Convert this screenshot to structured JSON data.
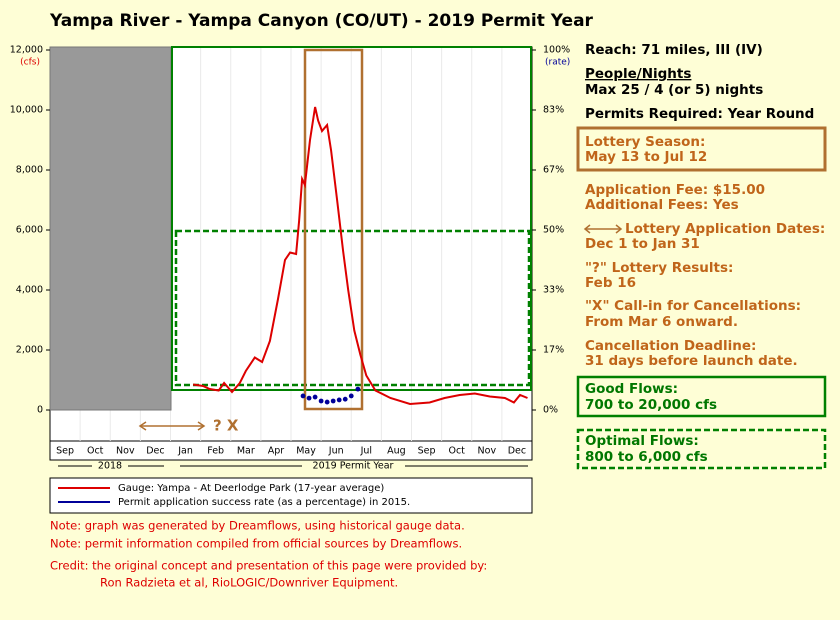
{
  "chart_data": {
    "type": "line",
    "title": "Yampa River - Yampa Canyon (CO/UT) - 2019 Permit Year",
    "y_unit": "(cfs)",
    "y2_unit": "(rate)",
    "categories": [
      "Sep",
      "Oct",
      "Nov",
      "Dec",
      "Jan",
      "Feb",
      "Mar",
      "Apr",
      "May",
      "Jun",
      "Jul",
      "Aug",
      "Sep",
      "Oct",
      "Nov",
      "Dec"
    ],
    "year_labels": [
      "2018",
      "2019 Permit Year"
    ],
    "annotations": [
      "? X"
    ],
    "xlim": [
      0,
      16
    ],
    "ylim": [
      0,
      12000
    ],
    "yticks": [
      0,
      {
        "value": 2000,
        "label": "2,000"
      },
      {
        "value": 4000,
        "label": "4,000"
      },
      {
        "value": 6000,
        "label": "6,000"
      },
      {
        "value": 8000,
        "label": "8,000"
      },
      {
        "value": 10000,
        "label": "10,000"
      },
      {
        "value": 12000,
        "label": "12,000"
      }
    ],
    "y2lim": [
      0,
      100
    ],
    "y2ticks": [
      {
        "value": 0,
        "label": "0%"
      },
      {
        "value": 16.67,
        "label": "17%"
      },
      {
        "value": 33.33,
        "label": "33%"
      },
      {
        "value": 50,
        "label": "50%"
      },
      {
        "value": 66.67,
        "label": "67%"
      },
      {
        "value": 83.33,
        "label": "83%"
      },
      {
        "value": 100,
        "label": "100%"
      }
    ],
    "grid": true,
    "series": [
      {
        "name": "Gauge: Yampa - At Deerlodge Park (17-year average)",
        "color": "#dd0000",
        "x": [
          4.75,
          5.08,
          5.3,
          5.6,
          5.78,
          6.04,
          6.3,
          6.5,
          6.8,
          7.04,
          7.3,
          7.57,
          7.8,
          7.97,
          8.17,
          8.27,
          8.37,
          8.46,
          8.63,
          8.8,
          8.9,
          9.03,
          9.2,
          9.33,
          9.53,
          9.73,
          9.9,
          10.1,
          10.3,
          10.5,
          10.8,
          11.3,
          11.95,
          12.6,
          13.1,
          13.6,
          14.1,
          14.6,
          15.1,
          15.4,
          15.6,
          15.85
        ],
        "values": [
          850,
          800,
          700,
          650,
          900,
          600,
          900,
          1300,
          1750,
          1600,
          2300,
          3700,
          5000,
          5250,
          5200,
          6300,
          7700,
          7500,
          9000,
          10100,
          9650,
          9300,
          9500,
          8650,
          7000,
          5300,
          4000,
          2650,
          1850,
          1150,
          650,
          400,
          200,
          250,
          400,
          500,
          550,
          450,
          400,
          250,
          500,
          400
        ]
      },
      {
        "name": "Permit application success rate (as a percentage) in 2015.",
        "color": "#000099",
        "axis": "y2",
        "x": [
          8.4,
          8.6,
          8.8,
          9.0,
          9.2,
          9.4,
          9.6,
          9.8,
          10.0,
          10.22
        ],
        "values": [
          3.9,
          3.3,
          3.6,
          2.5,
          2.2,
          2.5,
          2.8,
          3.0,
          3.9,
          5.8
        ]
      }
    ]
  },
  "sidebar": {
    "reach": "Reach: 71 miles, III (IV)",
    "people_heading": "People/Nights",
    "people": "Max 25 / 4 (or 5) nights",
    "permits": "Permits Required: Year Round",
    "lottery_season": [
      "Lottery Season:",
      "May 13 to Jul 12"
    ],
    "fees": [
      "Application Fee: $15.00",
      "Additional Fees: Yes"
    ],
    "application_dates": [
      "Lottery Application Dates:",
      "Dec 1 to Jan 31"
    ],
    "results": [
      "\"?\" Lottery Results:",
      "Feb 16"
    ],
    "callin": [
      "\"X\" Call-in for Cancellations:",
      "From Mar 6 onward."
    ],
    "deadline": [
      "Cancellation Deadline:",
      "31 days before launch date."
    ],
    "good_flows": [
      "Good Flows:",
      "700 to 20,000 cfs"
    ],
    "optimal_flows": [
      "Optimal Flows:",
      "800 to 6,000 cfs"
    ]
  },
  "notes": [
    "Note: graph was generated by Dreamflows, using historical gauge data.",
    "Note: permit information compiled from official sources by Dreamflows.",
    "Credit: the original concept and presentation of this page were provided by:",
    "Ron Radzieta et al, RioLOGIC/Downriver Equipment."
  ]
}
